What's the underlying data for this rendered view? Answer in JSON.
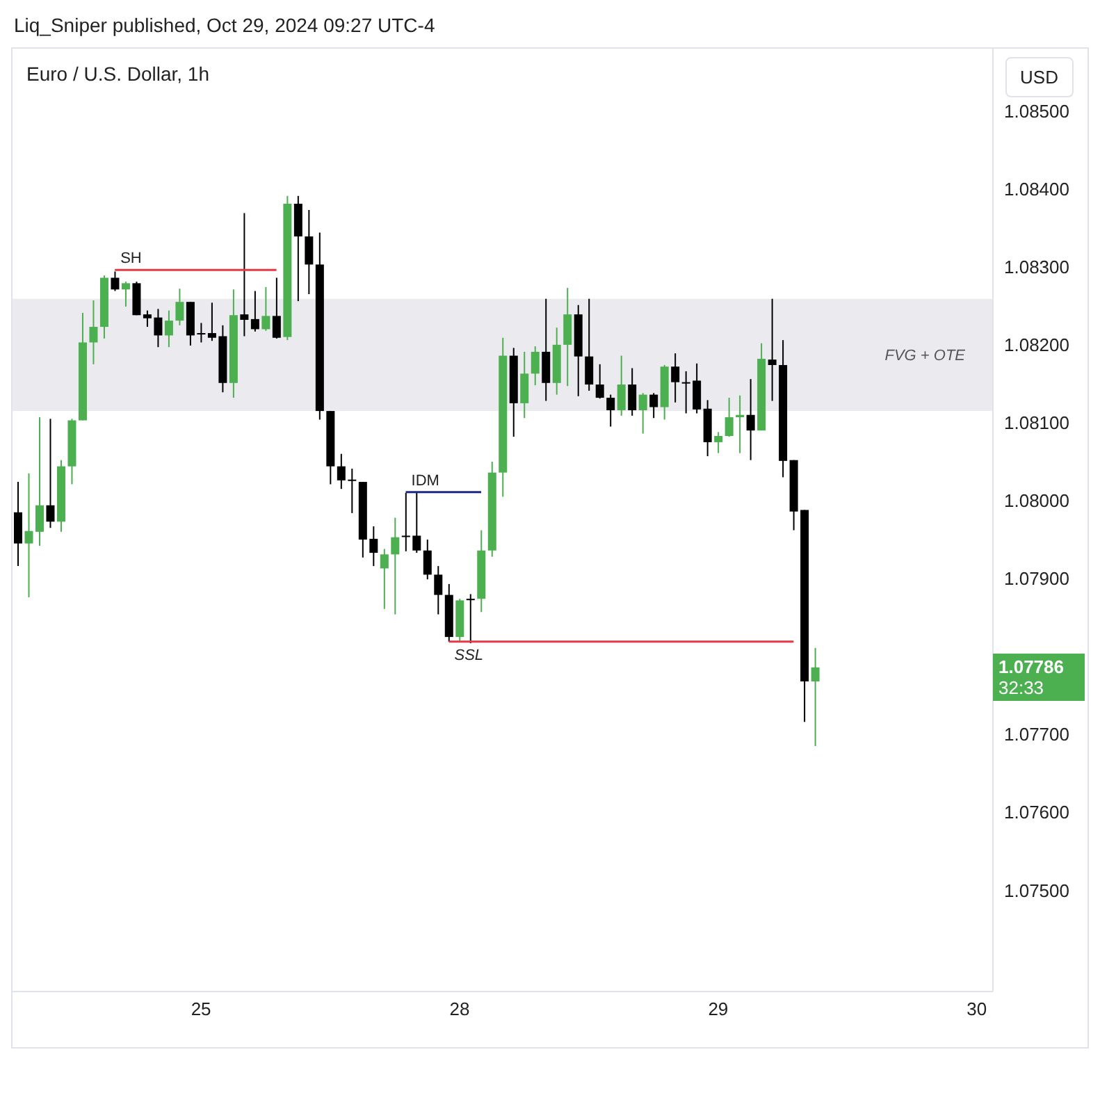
{
  "chart_data": {
    "type": "candlestick",
    "title": "Euro / U.S. Dollar, 1h",
    "annotations": [
      "Liq_Sniper published, Oct 29, 2024 09:27 UTC-4",
      "USD",
      "1.07786",
      "32:33"
    ],
    "categories": [
      null,
      null,
      null,
      null,
      null,
      null,
      null,
      null,
      null,
      null,
      null,
      null,
      null,
      null,
      null,
      null,
      null,
      "25",
      null,
      null,
      null,
      null,
      null,
      null,
      null,
      null,
      null,
      null,
      null,
      null,
      null,
      null,
      null,
      null,
      null,
      null,
      null,
      null,
      null,
      null,
      null,
      "28",
      null,
      null,
      null,
      null,
      null,
      null,
      null,
      null,
      null,
      null,
      null,
      null,
      null,
      null,
      null,
      null,
      null,
      null,
      null,
      null,
      null,
      null,
      null,
      "29",
      null,
      null,
      null,
      null,
      null,
      null,
      null,
      null,
      null,
      null,
      null,
      null,
      null,
      null,
      null,
      null,
      null,
      null,
      null,
      null,
      null,
      null,
      null,
      "30",
      null
    ],
    "ohlc": [
      [
        1.07985,
        1.08024,
        1.07916,
        1.07945
      ],
      [
        1.07945,
        1.08035,
        1.07876,
        1.07961
      ],
      [
        1.0796,
        1.08107,
        1.07942,
        1.07994
      ],
      [
        1.07994,
        1.08105,
        1.07965,
        1.07973
      ],
      [
        1.07973,
        1.08052,
        1.0796,
        1.08044
      ],
      [
        1.08044,
        1.08105,
        1.08021,
        1.08103
      ],
      [
        1.08103,
        1.08241,
        1.08103,
        1.08203
      ],
      [
        1.08203,
        1.08257,
        1.08175,
        1.08223
      ],
      [
        1.08223,
        1.08289,
        1.08208,
        1.08286
      ],
      [
        1.08286,
        1.08294,
        1.08269,
        1.08271
      ],
      [
        1.08271,
        1.08281,
        1.08249,
        1.08279
      ],
      [
        1.08279,
        1.08281,
        1.08238,
        1.08238
      ],
      [
        1.08239,
        1.08244,
        1.08223,
        1.08234
      ],
      [
        1.08235,
        1.08246,
        1.08197,
        1.08212
      ],
      [
        1.08212,
        1.08244,
        1.08197,
        1.08231
      ],
      [
        1.08231,
        1.08272,
        1.08225,
        1.08255
      ],
      [
        1.08255,
        1.08255,
        1.08199,
        1.08212
      ],
      [
        1.08215,
        1.08228,
        1.08203,
        1.08214
      ],
      [
        1.08215,
        1.08254,
        1.08205,
        1.08209
      ],
      [
        1.08211,
        1.08225,
        1.08139,
        1.08151
      ],
      [
        1.08151,
        1.08271,
        1.08132,
        1.08238
      ],
      [
        1.08239,
        1.08369,
        1.08211,
        1.08232
      ],
      [
        1.08233,
        1.08269,
        1.08217,
        1.0822
      ],
      [
        1.0822,
        1.08274,
        1.08218,
        1.08237
      ],
      [
        1.08237,
        1.08286,
        1.08208,
        1.08209
      ],
      [
        1.0821,
        1.08391,
        1.08206,
        1.08381
      ],
      [
        1.08381,
        1.08391,
        1.08256,
        1.08339
      ],
      [
        1.08339,
        1.08373,
        1.08265,
        1.08303
      ],
      [
        1.08303,
        1.08344,
        1.08104,
        1.08115
      ],
      [
        1.08115,
        1.08115,
        1.08021,
        1.08044
      ],
      [
        1.08044,
        1.0806,
        1.08015,
        1.08026
      ],
      [
        1.08027,
        1.08041,
        1.07984,
        1.08026
      ],
      [
        1.08024,
        1.08024,
        1.07927,
        1.0795
      ],
      [
        1.07951,
        1.07967,
        1.07916,
        1.07933
      ],
      [
        1.07913,
        1.07938,
        1.07861,
        1.07931
      ],
      [
        1.07931,
        1.07978,
        1.07854,
        1.07953
      ],
      [
        1.07955,
        1.0801,
        1.07935,
        1.07954
      ],
      [
        1.07955,
        1.0801,
        1.07933,
        1.07936
      ],
      [
        1.07936,
        1.0795,
        1.07899,
        1.07905
      ],
      [
        1.07905,
        1.07916,
        1.07854,
        1.07879
      ],
      [
        1.07879,
        1.07893,
        1.07819,
        1.07825
      ],
      [
        1.07825,
        1.07874,
        1.0782,
        1.07872
      ],
      [
        1.07874,
        1.0788,
        1.07817,
        1.07873
      ],
      [
        1.07874,
        1.07962,
        1.07857,
        1.07936
      ],
      [
        1.07936,
        1.0805,
        1.07928,
        1.08036
      ],
      [
        1.08036,
        1.08209,
        1.08005,
        1.08186
      ],
      [
        1.08186,
        1.08196,
        1.08082,
        1.08125
      ],
      [
        1.08125,
        1.08191,
        1.08106,
        1.08163
      ],
      [
        1.08163,
        1.08198,
        1.08148,
        1.08191
      ],
      [
        1.08191,
        1.08259,
        1.08128,
        1.08151
      ],
      [
        1.08151,
        1.08222,
        1.08136,
        1.082
      ],
      [
        1.082,
        1.08273,
        1.08147,
        1.08239
      ],
      [
        1.08239,
        1.08251,
        1.08134,
        1.08185
      ],
      [
        1.08185,
        1.08259,
        1.08141,
        1.08149
      ],
      [
        1.08149,
        1.08175,
        1.08131,
        1.08132
      ],
      [
        1.08132,
        1.08136,
        1.08095,
        1.08116
      ],
      [
        1.08116,
        1.08186,
        1.08109,
        1.08149
      ],
      [
        1.08149,
        1.0817,
        1.08109,
        1.08116
      ],
      [
        1.08116,
        1.08138,
        1.08086,
        1.08136
      ],
      [
        1.08136,
        1.08138,
        1.08106,
        1.0812
      ],
      [
        1.0812,
        1.08174,
        1.08104,
        1.08172
      ],
      [
        1.08172,
        1.08189,
        1.08126,
        1.08152
      ],
      [
        1.08152,
        1.08166,
        1.08112,
        1.08151
      ],
      [
        1.08154,
        1.08176,
        1.08112,
        1.08117
      ],
      [
        1.08118,
        1.08129,
        1.08057,
        1.08075
      ],
      [
        1.08075,
        1.08088,
        1.08061,
        1.08083
      ],
      [
        1.08083,
        1.08132,
        1.08082,
        1.08107
      ],
      [
        1.08107,
        1.08135,
        1.08061,
        1.0811
      ],
      [
        1.0811,
        1.08156,
        1.08052,
        1.0809
      ],
      [
        1.0809,
        1.08202,
        1.0809,
        1.08182
      ],
      [
        1.08181,
        1.08259,
        1.08128,
        1.08174
      ],
      [
        1.08174,
        1.08206,
        1.0803,
        1.08051
      ],
      [
        1.08052,
        1.08052,
        1.07962,
        1.07986
      ],
      [
        1.07988,
        1.07988,
        1.07716,
        1.07768
      ],
      [
        1.07768,
        1.07811,
        1.07685,
        1.07786
      ],
      null,
      null,
      null,
      null,
      null,
      null,
      null,
      null,
      null,
      null,
      null,
      null,
      null,
      null,
      null,
      null
    ],
    "colors": [
      "#000000",
      "#4caf50",
      "#4caf50",
      "#000000",
      "#4caf50",
      "#4caf50",
      "#4caf50",
      "#4caf50",
      "#4caf50",
      "#000000",
      "#4caf50",
      "#000000",
      "#000000",
      "#000000",
      "#4caf50",
      "#4caf50",
      "#000000",
      "#000000",
      "#000000",
      "#000000",
      "#4caf50",
      "#000000",
      "#000000",
      "#4caf50",
      "#000000",
      "#4caf50",
      "#000000",
      "#000000",
      "#000000",
      "#000000",
      "#000000",
      "#000000",
      "#000000",
      "#000000",
      "#4caf50",
      "#4caf50",
      "#000000",
      "#000000",
      "#000000",
      "#000000",
      "#000000",
      "#4caf50",
      "#000000",
      "#4caf50",
      "#4caf50",
      "#4caf50",
      "#000000",
      "#4caf50",
      "#4caf50",
      "#000000",
      "#4caf50",
      "#4caf50",
      "#000000",
      "#000000",
      "#000000",
      "#000000",
      "#4caf50",
      "#000000",
      "#4caf50",
      "#000000",
      "#4caf50",
      "#000000",
      "#000000",
      "#000000",
      "#000000",
      "#4caf50",
      "#4caf50",
      "#4caf50",
      "#000000",
      "#4caf50",
      "#000000",
      "#000000",
      "#000000",
      "#000000",
      "#4caf50",
      null,
      null,
      null,
      null,
      null,
      null,
      null,
      null,
      null,
      null,
      null,
      null,
      null,
      null,
      null,
      null
    ],
    "series": [
      {
        "name": "SH",
        "type": "line",
        "color": "#e53945",
        "values": [
          null,
          null,
          null,
          null,
          null,
          null,
          null,
          null,
          null,
          1.08296,
          1.08296,
          1.08296,
          1.08296,
          1.08296,
          1.08296,
          1.08296,
          1.08296,
          1.08296,
          1.08296,
          1.08296,
          1.08296,
          1.08296,
          1.08296,
          1.08296,
          1.08296,
          null,
          null,
          null,
          null,
          null,
          null,
          null,
          null,
          null,
          null,
          null,
          null,
          null,
          null,
          null,
          null,
          null,
          null,
          null,
          null,
          null,
          null,
          null,
          null,
          null,
          null,
          null,
          null,
          null,
          null,
          null,
          null,
          null,
          null,
          null,
          null,
          null,
          null,
          null,
          null,
          null,
          null,
          null,
          null,
          null,
          null,
          null,
          null,
          null,
          null,
          null,
          null,
          null,
          null,
          null,
          null,
          null,
          null,
          null,
          null,
          null,
          null,
          null,
          null,
          null,
          null
        ]
      },
      {
        "name": "IDM",
        "type": "line",
        "color": "#1a2a80",
        "values": [
          null,
          null,
          null,
          null,
          null,
          null,
          null,
          null,
          null,
          null,
          null,
          null,
          null,
          null,
          null,
          null,
          null,
          null,
          null,
          null,
          null,
          null,
          null,
          null,
          null,
          null,
          null,
          null,
          null,
          null,
          null,
          null,
          null,
          null,
          null,
          null,
          1.08011,
          1.08011,
          1.08011,
          1.08011,
          1.08011,
          1.08011,
          1.08011,
          1.08011,
          null,
          null,
          null,
          null,
          null,
          null,
          null,
          null,
          null,
          null,
          null,
          null,
          null,
          null,
          null,
          null,
          null,
          null,
          null,
          null,
          null,
          null,
          null,
          null,
          null,
          null,
          null,
          null,
          null,
          null,
          null,
          null,
          null,
          null,
          null,
          null,
          null,
          null,
          null,
          null,
          null,
          null,
          null,
          null,
          null,
          null,
          null
        ]
      },
      {
        "name": "SSL",
        "type": "line",
        "color": "#e53945",
        "values": [
          null,
          null,
          null,
          null,
          null,
          null,
          null,
          null,
          null,
          null,
          null,
          null,
          null,
          null,
          null,
          null,
          null,
          null,
          null,
          null,
          null,
          null,
          null,
          null,
          null,
          null,
          null,
          null,
          null,
          null,
          null,
          null,
          null,
          null,
          null,
          null,
          null,
          null,
          null,
          null,
          1.07819,
          1.07819,
          1.07819,
          1.07819,
          1.07819,
          1.07819,
          1.07819,
          1.07819,
          1.07819,
          1.07819,
          1.07819,
          1.07819,
          1.07819,
          1.07819,
          1.07819,
          1.07819,
          1.07819,
          1.07819,
          1.07819,
          1.07819,
          1.07819,
          1.07819,
          1.07819,
          1.07819,
          1.07819,
          1.07819,
          1.07819,
          1.07819,
          1.07819,
          1.07819,
          1.07819,
          1.07819,
          1.07819,
          null,
          null,
          null,
          null,
          null,
          null,
          null,
          null,
          null,
          null,
          null,
          null,
          null,
          null,
          null,
          null,
          null,
          null
        ]
      }
    ],
    "bands": [
      {
        "axis": "y",
        "from": 1.08115,
        "to": 1.08259,
        "label": "FVG + OTE",
        "color": "#ebebef"
      }
    ],
    "ylim": [
      1.0737,
      1.0858
    ],
    "yticks": [
      {
        "value": 1.075,
        "label": "1.07500"
      },
      {
        "value": 1.076,
        "label": "1.07600"
      },
      {
        "value": 1.077,
        "label": "1.07700"
      },
      {
        "value": 1.079,
        "label": "1.07900"
      },
      {
        "value": 1.08,
        "label": "1.08000"
      },
      {
        "value": 1.081,
        "label": "1.08100"
      },
      {
        "value": 1.082,
        "label": "1.08200"
      },
      {
        "value": 1.083,
        "label": "1.08300"
      },
      {
        "value": 1.084,
        "label": "1.08400"
      },
      {
        "value": 1.085,
        "label": "1.08500"
      }
    ],
    "legend": false
  }
}
